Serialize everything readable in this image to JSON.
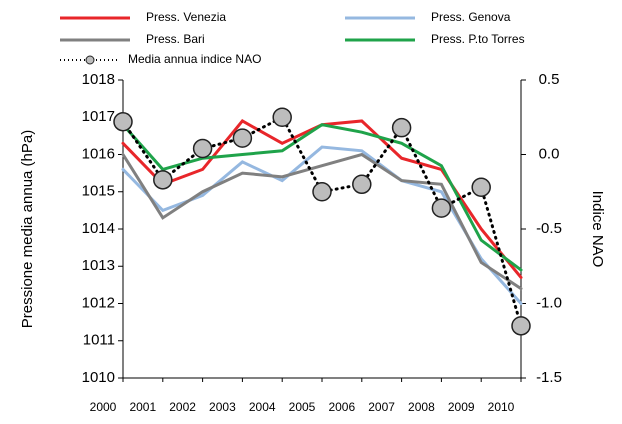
{
  "chart_data": {
    "type": "line",
    "categories": [
      "2000",
      "2001",
      "2002",
      "2003",
      "2004",
      "2005",
      "2006",
      "2007",
      "2008",
      "2009",
      "2010"
    ],
    "ylabel": "Pressione media annua (hPa)",
    "y2label": "Indice NAO",
    "ylim": [
      1010,
      1018
    ],
    "yticks": [
      1010,
      1011,
      1012,
      1013,
      1014,
      1015,
      1016,
      1017,
      1018
    ],
    "y2lim": [
      -1.5,
      0.5
    ],
    "y2ticks": [
      {
        "value": -1.5,
        "label": "-1.5"
      },
      {
        "value": -1,
        "label": "-1.0"
      },
      {
        "value": -0.5,
        "label": "-0.5"
      },
      {
        "value": 0,
        "label": "0.0"
      },
      {
        "value": 0.5,
        "label": "0.5"
      }
    ],
    "series": [
      {
        "name": "Press. Venezia",
        "color": "#e8262a",
        "values": [
          1016.3,
          1015.2,
          1015.6,
          1016.9,
          1016.3,
          1016.8,
          1016.9,
          1015.9,
          1015.6,
          1014.0,
          1012.7
        ]
      },
      {
        "name": "Press. Genova",
        "color": "#95b8e0",
        "values": [
          1015.6,
          1014.5,
          1014.9,
          1015.8,
          1015.3,
          1016.2,
          1016.1,
          1015.3,
          1015.0,
          1013.2,
          1012.0
        ]
      },
      {
        "name": "Press. Bari",
        "color": "#808080",
        "values": [
          1016.0,
          1014.3,
          1015.0,
          1015.5,
          1015.4,
          1015.7,
          1016.0,
          1015.3,
          1015.2,
          1013.1,
          1012.4
        ]
      },
      {
        "name": "Press. P.to Torres",
        "color": "#1fa34a",
        "values": [
          1016.8,
          1015.6,
          1015.9,
          1016.0,
          1016.1,
          1016.8,
          1016.6,
          1016.3,
          1015.7,
          1013.7,
          1012.9
        ]
      },
      {
        "name": "Media annua  indice NAO",
        "color": "#000000",
        "axis": "y2",
        "values": [
          0.22,
          -0.17,
          0.04,
          0.11,
          0.25,
          -0.25,
          -0.2,
          0.18,
          -0.36,
          -0.22,
          -1.15
        ]
      }
    ]
  }
}
